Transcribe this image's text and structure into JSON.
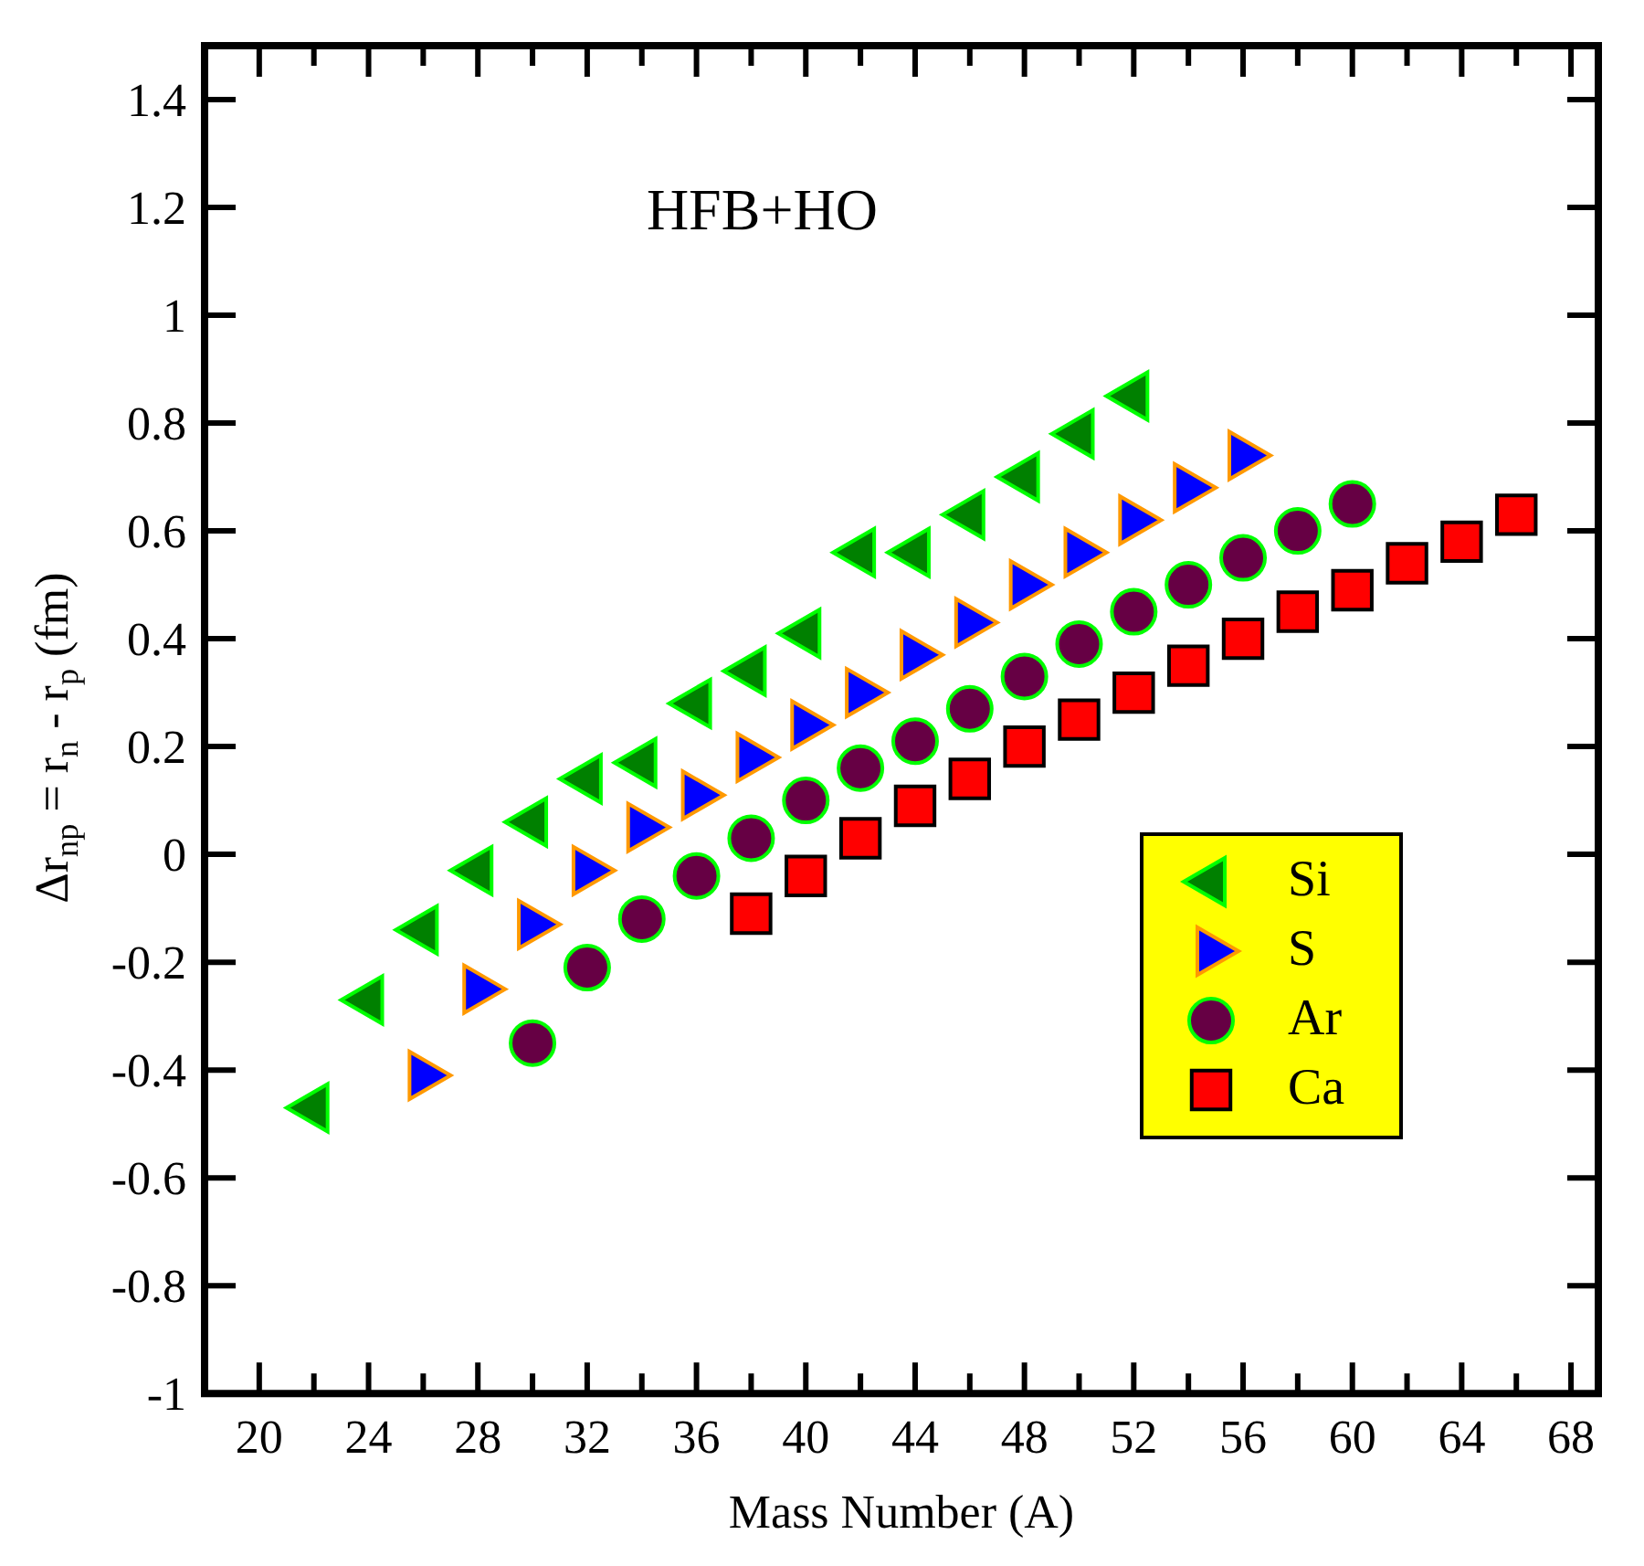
{
  "chart_data": {
    "type": "scatter",
    "title": "HFB+HO",
    "xlabel": "Mass Number (A)",
    "ylabel": "Δr$_{np}$ = r$_{n}$ - r$_{p}$ (fm)",
    "xlim": [
      18,
      69
    ],
    "xticks": [
      20,
      {
        "value": 22,
        "label": null
      },
      24,
      {
        "value": 26,
        "label": null
      },
      28,
      {
        "value": 30,
        "label": null
      },
      32,
      {
        "value": 34,
        "label": null
      },
      36,
      {
        "value": 38,
        "label": null
      },
      40,
      {
        "value": 42,
        "label": null
      },
      44,
      {
        "value": 46,
        "label": null
      },
      48,
      {
        "value": 50,
        "label": null
      },
      52,
      {
        "value": 54,
        "label": null
      },
      56,
      {
        "value": 58,
        "label": null
      },
      60,
      {
        "value": 62,
        "label": null
      },
      64,
      {
        "value": 66,
        "label": null
      },
      68
    ],
    "ylim": [
      -1,
      1.5
    ],
    "yticks": [
      -1,
      -0.8,
      -0.6,
      -0.4,
      -0.2,
      0,
      0.2,
      0.4,
      0.6,
      0.8,
      1,
      1.2,
      1.4
    ],
    "legend": "bottom right",
    "series": [
      {
        "name": "Si",
        "color": "#008000",
        "marker": "triangle",
        "x": [
          22,
          24,
          26,
          28,
          30,
          32,
          34,
          36,
          38,
          40,
          42,
          44,
          46,
          48,
          50,
          52
        ],
        "values": [
          -0.47,
          -0.27,
          -0.14,
          -0.03,
          0.06,
          0.14,
          0.17,
          0.28,
          0.34,
          0.41,
          0.56,
          0.56,
          0.63,
          0.7,
          0.78,
          0.85
        ]
      },
      {
        "name": "S",
        "color": "#0000ff",
        "marker": "triangle",
        "x": [
          26,
          28,
          30,
          32,
          34,
          36,
          38,
          40,
          42,
          44,
          46,
          48,
          50,
          52,
          54,
          56
        ],
        "values": [
          -0.41,
          -0.25,
          -0.13,
          -0.03,
          0.05,
          0.11,
          0.18,
          0.24,
          0.3,
          0.37,
          0.43,
          0.5,
          0.56,
          0.62,
          0.68,
          0.74
        ]
      },
      {
        "name": "Ar",
        "color": "#660044",
        "marker": "circle",
        "x": [
          30,
          32,
          34,
          36,
          38,
          40,
          42,
          44,
          46,
          48,
          50,
          52,
          54,
          56,
          58,
          60
        ],
        "values": [
          -0.35,
          -0.21,
          -0.12,
          -0.04,
          0.03,
          0.1,
          0.16,
          0.21,
          0.27,
          0.33,
          0.39,
          0.45,
          0.5,
          0.55,
          0.6,
          0.65
        ]
      },
      {
        "name": "Ca",
        "color": "#ff0000",
        "marker": "square",
        "x": [
          38,
          40,
          42,
          44,
          46,
          48,
          50,
          52,
          54,
          56,
          58,
          60,
          62,
          64,
          66
        ],
        "values": [
          -0.11,
          -0.04,
          0.03,
          0.09,
          0.14,
          0.2,
          0.25,
          0.3,
          0.35,
          0.4,
          0.45,
          0.49,
          0.54,
          0.58,
          0.63
        ]
      }
    ]
  }
}
